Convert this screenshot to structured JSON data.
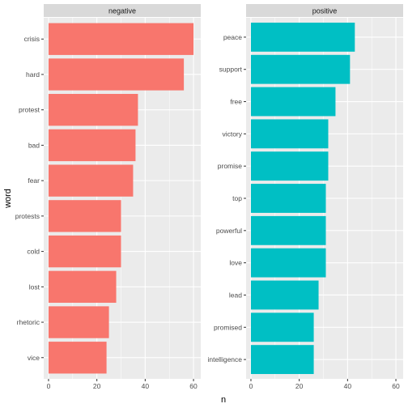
{
  "chart_data": {
    "type": "bar",
    "orientation": "horizontal",
    "xlabel": "n",
    "ylabel": "word",
    "colors": {
      "negative": "#F8766D",
      "positive": "#00BFC4",
      "panel_bg": "#EBEBEB",
      "strip_bg": "#D9D9D9",
      "grid": "#FFFFFF",
      "text": "#4D4D4D"
    },
    "grid": true,
    "legend": "none",
    "panels": [
      {
        "name": "negative",
        "xlim": [
          -2,
          63
        ],
        "xticks": [
          0,
          20,
          40,
          60
        ],
        "categories": [
          "crisis",
          "hard",
          "protest",
          "bad",
          "fear",
          "protests",
          "cold",
          "lost",
          "rhetoric",
          "vice"
        ],
        "values": [
          60,
          56,
          37,
          36,
          35,
          30,
          30,
          28,
          25,
          24
        ]
      },
      {
        "name": "positive",
        "xlim": [
          -2,
          63
        ],
        "xticks": [
          0,
          20,
          40,
          60
        ],
        "categories": [
          "peace",
          "support",
          "free",
          "victory",
          "promise",
          "top",
          "powerful",
          "love",
          "lead",
          "promised",
          "intelligence"
        ],
        "values": [
          43,
          41,
          35,
          32,
          32,
          31,
          31,
          31,
          28,
          26,
          26
        ]
      }
    ]
  }
}
